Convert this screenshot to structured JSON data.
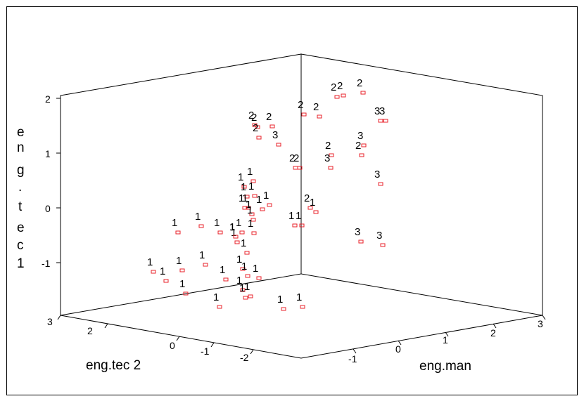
{
  "chart_data": {
    "type": "scatter",
    "subtype": "3d-scatter",
    "axes": {
      "x": {
        "label": "eng.man",
        "ticks": [
          "-1",
          "0",
          "1",
          "2",
          "3"
        ]
      },
      "y": {
        "label": "eng.tec 2",
        "ticks": [
          "3",
          "2",
          "0",
          "-1",
          "-2"
        ]
      },
      "z": {
        "label_chars": [
          "e",
          "n",
          "g",
          ".",
          "t",
          "e",
          "c",
          "1"
        ],
        "ticks": [
          "2",
          "1",
          "0",
          "-1"
        ]
      }
    },
    "colors": {
      "marker": "#e8202a",
      "axis": "#000000",
      "background": "#ffffff"
    },
    "grid": false,
    "points": [
      {
        "label": "2"
      },
      {
        "label": "2"
      },
      {
        "label": "2"
      },
      {
        "label": "2"
      },
      {
        "label": "2"
      },
      {
        "label": "3"
      },
      {
        "label": "3"
      },
      {
        "label": "2"
      },
      {
        "label": "2"
      },
      {
        "label": "2"
      },
      {
        "label": "2"
      },
      {
        "label": "3"
      },
      {
        "label": "2"
      },
      {
        "label": "2"
      },
      {
        "label": "2"
      },
      {
        "label": "3"
      },
      {
        "label": "2"
      },
      {
        "label": "3"
      },
      {
        "label": "3"
      },
      {
        "label": "1"
      },
      {
        "label": "1"
      },
      {
        "label": "1"
      },
      {
        "label": "1"
      },
      {
        "label": "1"
      },
      {
        "label": "1"
      },
      {
        "label": "1"
      },
      {
        "label": "2"
      },
      {
        "label": "1"
      },
      {
        "label": "1"
      },
      {
        "label": "1"
      },
      {
        "label": "1"
      },
      {
        "label": "1"
      },
      {
        "label": "1"
      },
      {
        "label": "1"
      },
      {
        "label": "1"
      },
      {
        "label": "1"
      },
      {
        "label": "1"
      },
      {
        "label": "3"
      },
      {
        "label": "3"
      },
      {
        "label": "1"
      },
      {
        "label": "1"
      },
      {
        "label": "1"
      },
      {
        "label": "1"
      },
      {
        "label": "1"
      },
      {
        "label": "1"
      },
      {
        "label": "1"
      },
      {
        "label": "1"
      },
      {
        "label": "1"
      },
      {
        "label": "1"
      },
      {
        "label": "1"
      },
      {
        "label": "1"
      },
      {
        "label": "1"
      },
      {
        "label": "1"
      },
      {
        "label": "1"
      },
      {
        "label": "1"
      },
      {
        "label": "1"
      },
      {
        "label": "1"
      },
      {
        "label": "1"
      },
      {
        "label": "1"
      }
    ]
  }
}
